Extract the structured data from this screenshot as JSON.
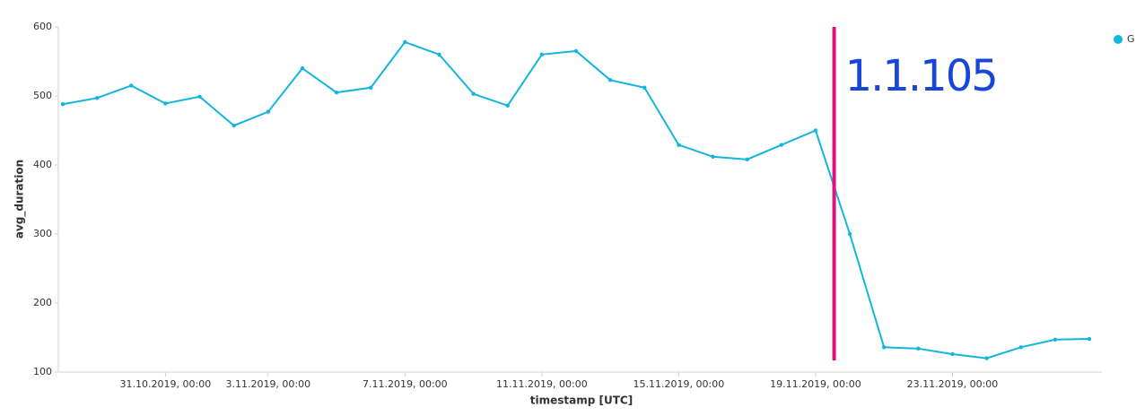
{
  "chart_data": {
    "type": "line",
    "x": [
      "2019-10-28T00:00",
      "2019-10-29T00:00",
      "2019-10-30T00:00",
      "2019-10-31T00:00",
      "2019-11-01T00:00",
      "2019-11-02T00:00",
      "2019-11-03T00:00",
      "2019-11-04T00:00",
      "2019-11-05T00:00",
      "2019-11-06T00:00",
      "2019-11-07T00:00",
      "2019-11-08T00:00",
      "2019-11-09T00:00",
      "2019-11-10T00:00",
      "2019-11-11T00:00",
      "2019-11-12T00:00",
      "2019-11-13T00:00",
      "2019-11-14T00:00",
      "2019-11-15T00:00",
      "2019-11-16T00:00",
      "2019-11-17T00:00",
      "2019-11-18T00:00",
      "2019-11-19T00:00",
      "2019-11-20T00:00",
      "2019-11-21T00:00",
      "2019-11-22T00:00",
      "2019-11-23T00:00",
      "2019-11-24T00:00",
      "2019-11-25T00:00",
      "2019-11-26T00:00",
      "2019-11-27T00:00"
    ],
    "series": [
      {
        "name": "G",
        "color": "#12b5de",
        "values": [
          488,
          497,
          515,
          489,
          499,
          457,
          477,
          540,
          505,
          512,
          578,
          560,
          503,
          486,
          560,
          565,
          523,
          512,
          429,
          412,
          408,
          429,
          450,
          300,
          136,
          134,
          126,
          120,
          136,
          147,
          148
        ]
      }
    ],
    "xlabel": "timestamp [UTC]",
    "ylabel": "avg_duration",
    "xlim": [
      "2019-10-28T00:00",
      "2019-11-27T00:00"
    ],
    "xticks": [
      {
        "value": "2019-10-31T00:00",
        "label": "31.10.2019, 00:00"
      },
      {
        "value": "2019-11-03T00:00",
        "label": "3.11.2019, 00:00"
      },
      {
        "value": "2019-11-07T00:00",
        "label": "7.11.2019, 00:00"
      },
      {
        "value": "2019-11-11T00:00",
        "label": "11.11.2019, 00:00"
      },
      {
        "value": "2019-11-15T00:00",
        "label": "15.11.2019, 00:00"
      },
      {
        "value": "2019-11-19T00:00",
        "label": "19.11.2019, 00:00"
      },
      {
        "value": "2019-11-23T00:00",
        "label": "23.11.2019, 00:00"
      }
    ],
    "ylim": [
      100,
      600
    ],
    "yticks": [
      100,
      200,
      300,
      400,
      500,
      600
    ],
    "annotation": {
      "text": "1.1.105",
      "x": "2019-11-19T13:00",
      "color": "#1746d8",
      "line_color": "#e0137e"
    }
  }
}
